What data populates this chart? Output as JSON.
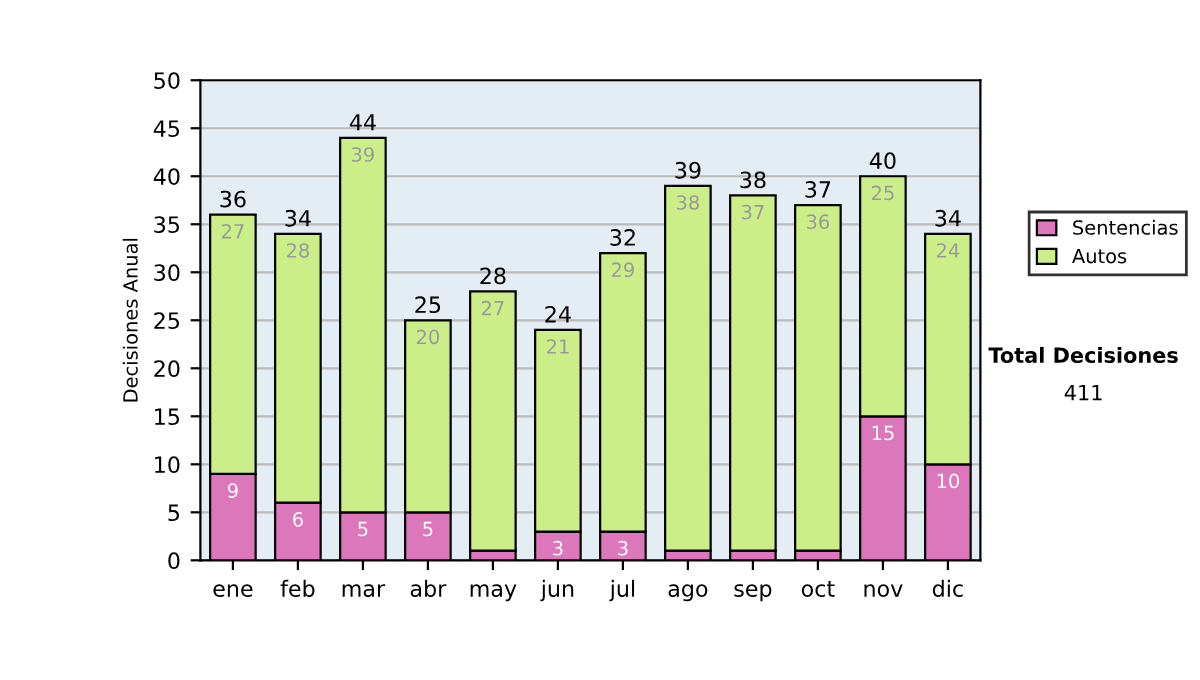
{
  "chart_data": {
    "type": "bar",
    "stacked": true,
    "ylabel": "Decisiones Anual",
    "categories": [
      "ene",
      "feb",
      "mar",
      "abr",
      "may",
      "jun",
      "jul",
      "ago",
      "sep",
      "oct",
      "nov",
      "dic"
    ],
    "series": [
      {
        "name": "Sentencias",
        "color": "#dd77bb",
        "values": [
          9,
          6,
          5,
          5,
          1,
          3,
          3,
          1,
          1,
          1,
          15,
          10
        ],
        "value_labels": [
          "9",
          "6",
          "5",
          "5",
          null,
          "3",
          "3",
          null,
          null,
          null,
          "15",
          "10"
        ]
      },
      {
        "name": "Autos",
        "color": "#ccee88",
        "values": [
          27,
          28,
          39,
          20,
          27,
          21,
          29,
          38,
          37,
          36,
          25,
          24
        ],
        "value_labels": [
          "27",
          "28",
          "39",
          "20",
          "27",
          "21",
          "29",
          "38",
          "37",
          "36",
          "25",
          "24"
        ]
      }
    ],
    "totals": [
      "36",
      "34",
      "44",
      "25",
      "28",
      "24",
      "32",
      "39",
      "38",
      "37",
      "40",
      "34"
    ],
    "ylim": [
      0,
      50
    ],
    "yticks": [
      0,
      5,
      10,
      15,
      20,
      25,
      30,
      35,
      40,
      45,
      50
    ],
    "grid": "y",
    "legend": "right",
    "annotations": [
      "Total Decisiones",
      "411"
    ]
  }
}
